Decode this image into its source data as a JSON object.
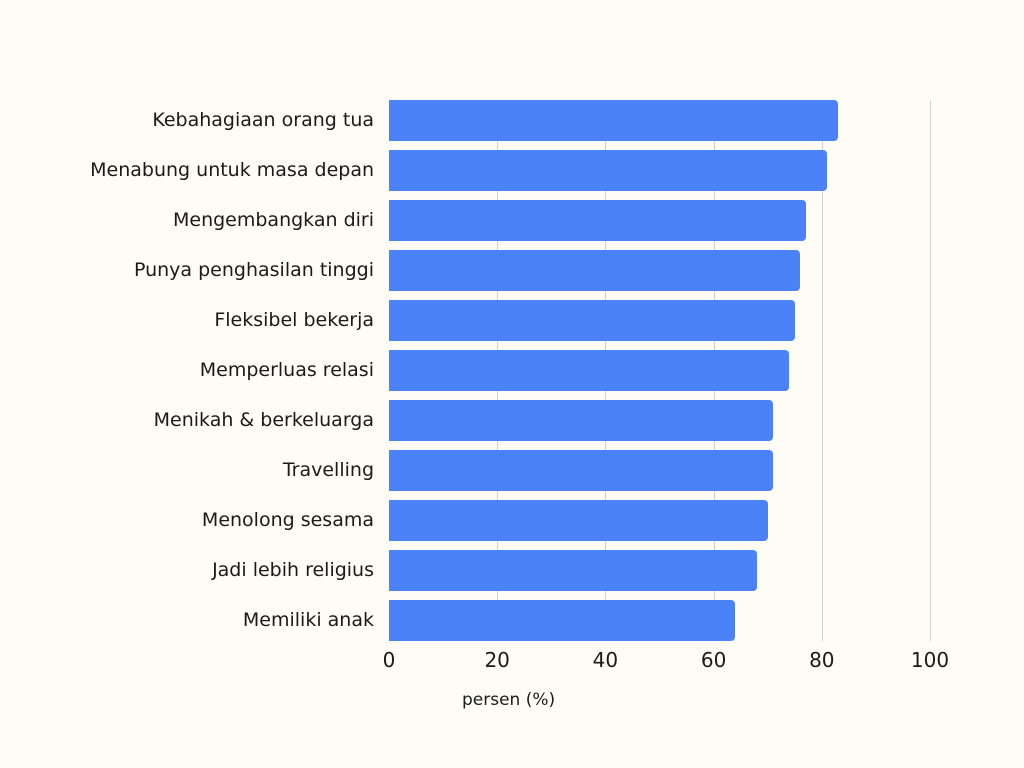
{
  "chart_data": {
    "type": "bar",
    "orientation": "horizontal",
    "title": "",
    "xlabel": "persen (%)",
    "ylabel": "",
    "xlim": [
      0,
      100
    ],
    "xticks": [
      "0",
      "20",
      "40",
      "60",
      "80",
      "100"
    ],
    "grid": true,
    "color": "#4b82f7",
    "categories": [
      "Kebahagiaan orang tua",
      "Menabung untuk masa depan",
      "Mengembangkan diri",
      "Punya penghasilan tinggi",
      "Fleksibel bekerja",
      "Memperluas relasi",
      "Menikah & berkeluarga",
      "Travelling",
      "Menolong sesama",
      "Jadi lebih religius",
      "Memiliki anak"
    ],
    "values": [
      83,
      81,
      77,
      76,
      75,
      74,
      71,
      71,
      70,
      68,
      64
    ]
  }
}
